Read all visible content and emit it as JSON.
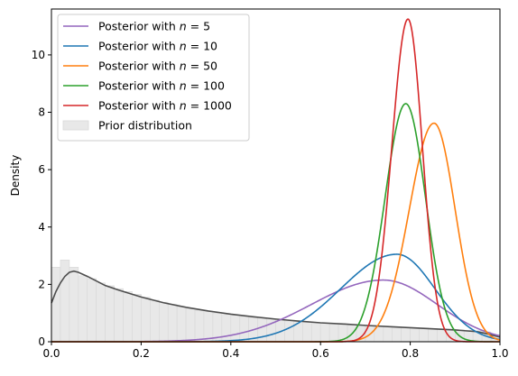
{
  "chart_data": {
    "type": "line",
    "title": "",
    "xlabel": "",
    "ylabel": "Density",
    "xlim": [
      0.0,
      1.0
    ],
    "ylim": [
      0,
      11.6
    ],
    "x_ticks": [
      0.0,
      0.2,
      0.4,
      0.6,
      0.8,
      1.0
    ],
    "x_tick_labels": [
      "0.0",
      "0.2",
      "0.4",
      "0.6",
      "0.8",
      "1.0"
    ],
    "y_ticks": [
      0,
      2,
      4,
      6,
      8,
      10
    ],
    "y_tick_labels": [
      "0",
      "2",
      "4",
      "6",
      "8",
      "10"
    ],
    "grid": false,
    "legend_position": "top-left",
    "series": [
      {
        "name": "Posterior with n = 5",
        "legend_prefix": "Posterior with ",
        "legend_var": "n",
        "legend_suffix": " = 5",
        "color": "#9467bd",
        "mean": 0.74,
        "peak": 2.15,
        "sd_left": 0.16,
        "sd_right": 0.12
      },
      {
        "name": "Posterior with n = 10",
        "legend_prefix": "Posterior with ",
        "legend_var": "n",
        "legend_suffix": " = 10",
        "color": "#1f77b4",
        "mean": 0.77,
        "peak": 3.05,
        "sd_left": 0.125,
        "sd_right": 0.085
      },
      {
        "name": "Posterior with n = 50",
        "legend_prefix": "Posterior with ",
        "legend_var": "n",
        "legend_suffix": " = 50",
        "color": "#ff7f0e",
        "mean": 0.853,
        "peak": 7.62,
        "sd_left": 0.055,
        "sd_right": 0.047
      },
      {
        "name": "Posterior with n = 100",
        "legend_prefix": "Posterior with ",
        "legend_var": "n",
        "legend_suffix": " = 100",
        "color": "#2ca02c",
        "mean": 0.79,
        "peak": 8.3,
        "sd_left": 0.046,
        "sd_right": 0.044
      },
      {
        "name": "Posterior with n = 1000",
        "legend_prefix": "Posterior with ",
        "legend_var": "n",
        "legend_suffix": " = 1000",
        "color": "#d62728",
        "mean": 0.795,
        "peak": 11.25,
        "sd_left": 0.036,
        "sd_right": 0.032
      }
    ],
    "prior": {
      "name": "Prior distribution",
      "fill_color": "#e8e8e8",
      "edge_color": "#d8d8d8",
      "kde_color": "#4d4d4d",
      "kde_curve": {
        "x": [
          0.0,
          0.01,
          0.02,
          0.03,
          0.04,
          0.05,
          0.06,
          0.07,
          0.08,
          0.1,
          0.12,
          0.15,
          0.2,
          0.25,
          0.3,
          0.35,
          0.4,
          0.45,
          0.5,
          0.55,
          0.6,
          0.65,
          0.7,
          0.75,
          0.8,
          0.85,
          0.9,
          0.95,
          0.97,
          1.0
        ],
        "y": [
          1.35,
          1.75,
          2.05,
          2.28,
          2.42,
          2.46,
          2.42,
          2.35,
          2.28,
          2.12,
          1.96,
          1.8,
          1.56,
          1.36,
          1.2,
          1.07,
          0.96,
          0.87,
          0.79,
          0.72,
          0.66,
          0.62,
          0.57,
          0.53,
          0.49,
          0.45,
          0.41,
          0.35,
          0.28,
          0.16
        ]
      },
      "histogram": {
        "bin_width": 0.02,
        "heights": [
          2.6,
          2.85,
          2.6,
          2.3,
          2.2,
          2.05,
          1.95,
          1.85,
          1.75,
          1.65,
          1.55,
          1.45,
          1.38,
          1.3,
          1.22,
          1.15,
          1.1,
          1.05,
          1.0,
          0.95,
          0.92,
          0.88,
          0.84,
          0.8,
          0.77,
          0.74,
          0.72,
          0.7,
          0.68,
          0.66,
          0.64,
          0.62,
          0.6,
          0.58,
          0.57,
          0.56,
          0.54,
          0.53,
          0.52,
          0.5,
          0.49,
          0.48,
          0.46,
          0.45,
          0.44,
          0.42,
          0.4,
          0.38,
          0.34,
          0.25
        ]
      }
    }
  }
}
